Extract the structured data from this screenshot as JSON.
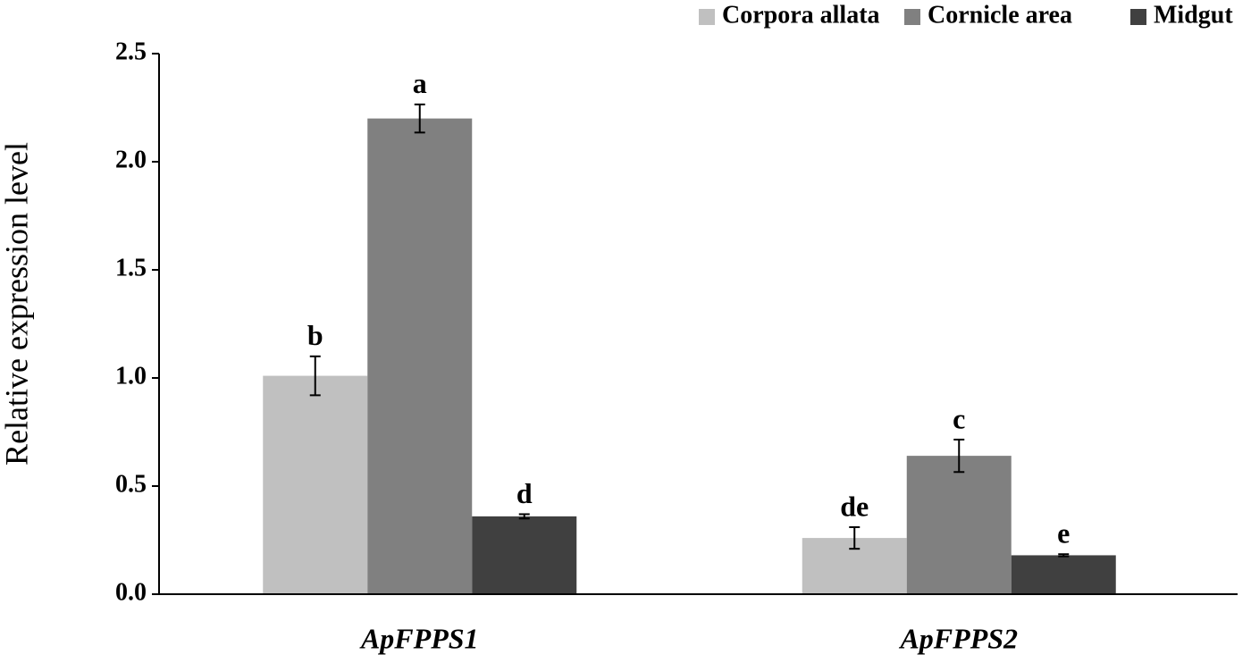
{
  "chart_data": {
    "type": "bar",
    "ylabel": "Relative expression level",
    "categories": [
      "ApFPPS1",
      "ApFPPS2"
    ],
    "series": [
      {
        "name": "Corpora allata",
        "color": "#c0c0c0",
        "values": [
          1.01,
          0.26
        ],
        "errors": [
          0.09,
          0.05
        ],
        "annotations": [
          "b",
          "de"
        ]
      },
      {
        "name": "Cornicle area",
        "color": "#808080",
        "values": [
          2.2,
          0.64
        ],
        "errors": [
          0.065,
          0.075
        ],
        "annotations": [
          "a",
          "c"
        ]
      },
      {
        "name": "Midgut",
        "color": "#404040",
        "values": [
          0.36,
          0.18
        ],
        "errors": [
          0.01,
          0.005
        ],
        "annotations": [
          "d",
          "e"
        ]
      }
    ],
    "ylim": [
      0,
      2.5
    ],
    "yticks": [
      {
        "value": 0,
        "label": "0.0"
      },
      0.5,
      {
        "value": 1,
        "label": "1.0"
      },
      1.5,
      {
        "value": 2,
        "label": "2.0"
      },
      2.5
    ],
    "legend": "top-right"
  }
}
